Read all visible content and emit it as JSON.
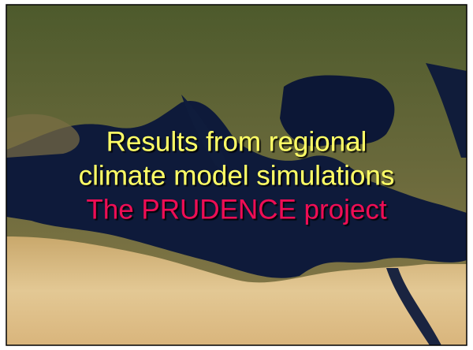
{
  "slide": {
    "title_lines": [
      "Results from regional",
      "climate model simulations"
    ],
    "subtitle": "The PRUDENCE project"
  }
}
